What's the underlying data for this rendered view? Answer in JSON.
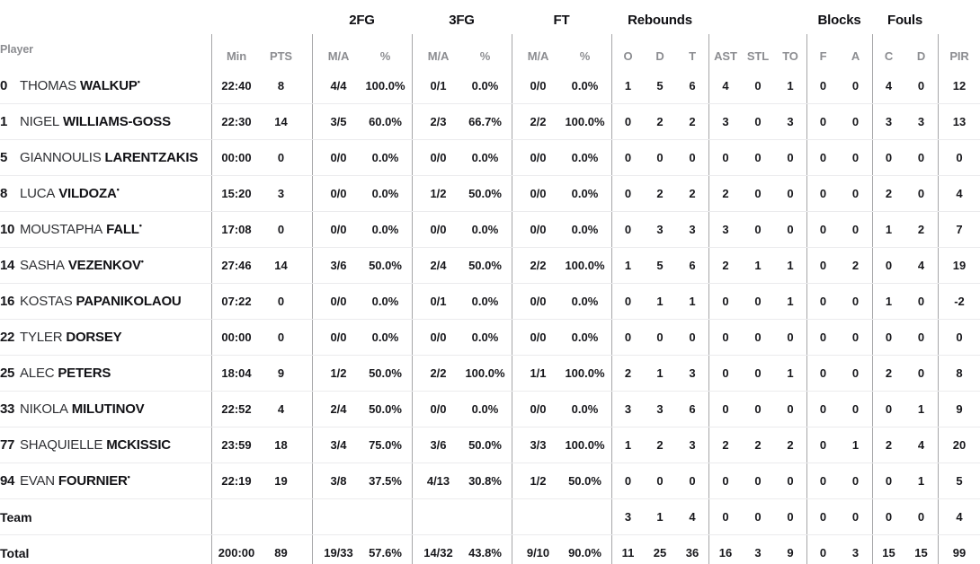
{
  "groups": {
    "fg2": "2FG",
    "fg3": "3FG",
    "ft": "FT",
    "rebounds": "Rebounds",
    "blocks": "Blocks",
    "fouls": "Fouls"
  },
  "columns": {
    "player": "Player",
    "min": "Min",
    "pts": "PTS",
    "ma": "M/A",
    "pct": "%",
    "o": "O",
    "d": "D",
    "t": "T",
    "ast": "AST",
    "stl": "STL",
    "to": "TO",
    "f": "F",
    "a": "A",
    "c": "C",
    "d2": "D",
    "pir": "PIR"
  },
  "starter_marker": "•",
  "colors": {
    "text": "#17171b",
    "header_gray": "#8c8d91",
    "divider": "#a6a6a8",
    "row_separator": "#ebebed"
  },
  "players": [
    {
      "number": "0",
      "first": "THOMAS",
      "last": "WALKUP",
      "starter": true,
      "min": "22:40",
      "pts": "8",
      "fg2ma": "4/4",
      "fg2pct": "100.0%",
      "fg3ma": "0/1",
      "fg3pct": "0.0%",
      "ftma": "0/0",
      "ftpct": "0.0%",
      "o": "1",
      "d": "5",
      "t": "6",
      "ast": "4",
      "stl": "0",
      "to": "1",
      "bf": "0",
      "ba": "0",
      "fc": "4",
      "fd": "0",
      "pir": "12"
    },
    {
      "number": "1",
      "first": "NIGEL",
      "last": "WILLIAMS-GOSS",
      "starter": false,
      "min": "22:30",
      "pts": "14",
      "fg2ma": "3/5",
      "fg2pct": "60.0%",
      "fg3ma": "2/3",
      "fg3pct": "66.7%",
      "ftma": "2/2",
      "ftpct": "100.0%",
      "o": "0",
      "d": "2",
      "t": "2",
      "ast": "3",
      "stl": "0",
      "to": "3",
      "bf": "0",
      "ba": "0",
      "fc": "3",
      "fd": "3",
      "pir": "13"
    },
    {
      "number": "5",
      "first": "GIANNOULIS",
      "last": "LARENTZAKIS",
      "starter": false,
      "min": "00:00",
      "pts": "0",
      "fg2ma": "0/0",
      "fg2pct": "0.0%",
      "fg3ma": "0/0",
      "fg3pct": "0.0%",
      "ftma": "0/0",
      "ftpct": "0.0%",
      "o": "0",
      "d": "0",
      "t": "0",
      "ast": "0",
      "stl": "0",
      "to": "0",
      "bf": "0",
      "ba": "0",
      "fc": "0",
      "fd": "0",
      "pir": "0"
    },
    {
      "number": "8",
      "first": "LUCA",
      "last": "VILDOZA",
      "starter": true,
      "min": "15:20",
      "pts": "3",
      "fg2ma": "0/0",
      "fg2pct": "0.0%",
      "fg3ma": "1/2",
      "fg3pct": "50.0%",
      "ftma": "0/0",
      "ftpct": "0.0%",
      "o": "0",
      "d": "2",
      "t": "2",
      "ast": "2",
      "stl": "0",
      "to": "0",
      "bf": "0",
      "ba": "0",
      "fc": "2",
      "fd": "0",
      "pir": "4"
    },
    {
      "number": "10",
      "first": "MOUSTAPHA",
      "last": "FALL",
      "starter": true,
      "min": "17:08",
      "pts": "0",
      "fg2ma": "0/0",
      "fg2pct": "0.0%",
      "fg3ma": "0/0",
      "fg3pct": "0.0%",
      "ftma": "0/0",
      "ftpct": "0.0%",
      "o": "0",
      "d": "3",
      "t": "3",
      "ast": "3",
      "stl": "0",
      "to": "0",
      "bf": "0",
      "ba": "0",
      "fc": "1",
      "fd": "2",
      "pir": "7"
    },
    {
      "number": "14",
      "first": "SASHA",
      "last": "VEZENKOV",
      "starter": true,
      "min": "27:46",
      "pts": "14",
      "fg2ma": "3/6",
      "fg2pct": "50.0%",
      "fg3ma": "2/4",
      "fg3pct": "50.0%",
      "ftma": "2/2",
      "ftpct": "100.0%",
      "o": "1",
      "d": "5",
      "t": "6",
      "ast": "2",
      "stl": "1",
      "to": "1",
      "bf": "0",
      "ba": "2",
      "fc": "0",
      "fd": "4",
      "pir": "19"
    },
    {
      "number": "16",
      "first": "KOSTAS",
      "last": "PAPANIKOLAOU",
      "starter": false,
      "min": "07:22",
      "pts": "0",
      "fg2ma": "0/0",
      "fg2pct": "0.0%",
      "fg3ma": "0/1",
      "fg3pct": "0.0%",
      "ftma": "0/0",
      "ftpct": "0.0%",
      "o": "0",
      "d": "1",
      "t": "1",
      "ast": "0",
      "stl": "0",
      "to": "1",
      "bf": "0",
      "ba": "0",
      "fc": "1",
      "fd": "0",
      "pir": "-2"
    },
    {
      "number": "22",
      "first": "TYLER",
      "last": "DORSEY",
      "starter": false,
      "min": "00:00",
      "pts": "0",
      "fg2ma": "0/0",
      "fg2pct": "0.0%",
      "fg3ma": "0/0",
      "fg3pct": "0.0%",
      "ftma": "0/0",
      "ftpct": "0.0%",
      "o": "0",
      "d": "0",
      "t": "0",
      "ast": "0",
      "stl": "0",
      "to": "0",
      "bf": "0",
      "ba": "0",
      "fc": "0",
      "fd": "0",
      "pir": "0"
    },
    {
      "number": "25",
      "first": "ALEC",
      "last": "PETERS",
      "starter": false,
      "min": "18:04",
      "pts": "9",
      "fg2ma": "1/2",
      "fg2pct": "50.0%",
      "fg3ma": "2/2",
      "fg3pct": "100.0%",
      "ftma": "1/1",
      "ftpct": "100.0%",
      "o": "2",
      "d": "1",
      "t": "3",
      "ast": "0",
      "stl": "0",
      "to": "1",
      "bf": "0",
      "ba": "0",
      "fc": "2",
      "fd": "0",
      "pir": "8"
    },
    {
      "number": "33",
      "first": "NIKOLA",
      "last": "MILUTINOV",
      "starter": false,
      "min": "22:52",
      "pts": "4",
      "fg2ma": "2/4",
      "fg2pct": "50.0%",
      "fg3ma": "0/0",
      "fg3pct": "0.0%",
      "ftma": "0/0",
      "ftpct": "0.0%",
      "o": "3",
      "d": "3",
      "t": "6",
      "ast": "0",
      "stl": "0",
      "to": "0",
      "bf": "0",
      "ba": "0",
      "fc": "0",
      "fd": "1",
      "pir": "9"
    },
    {
      "number": "77",
      "first": "SHAQUIELLE",
      "last": "MCKISSIC",
      "starter": false,
      "min": "23:59",
      "pts": "18",
      "fg2ma": "3/4",
      "fg2pct": "75.0%",
      "fg3ma": "3/6",
      "fg3pct": "50.0%",
      "ftma": "3/3",
      "ftpct": "100.0%",
      "o": "1",
      "d": "2",
      "t": "3",
      "ast": "2",
      "stl": "2",
      "to": "2",
      "bf": "0",
      "ba": "1",
      "fc": "2",
      "fd": "4",
      "pir": "20"
    },
    {
      "number": "94",
      "first": "EVAN",
      "last": "FOURNIER",
      "starter": true,
      "min": "22:19",
      "pts": "19",
      "fg2ma": "3/8",
      "fg2pct": "37.5%",
      "fg3ma": "4/13",
      "fg3pct": "30.8%",
      "ftma": "1/2",
      "ftpct": "50.0%",
      "o": "0",
      "d": "0",
      "t": "0",
      "ast": "0",
      "stl": "0",
      "to": "0",
      "bf": "0",
      "ba": "0",
      "fc": "0",
      "fd": "1",
      "pir": "5"
    }
  ],
  "team": {
    "label": "Team",
    "o": "3",
    "d": "1",
    "t": "4",
    "ast": "0",
    "stl": "0",
    "to": "0",
    "bf": "0",
    "ba": "0",
    "fc": "0",
    "fd": "0",
    "pir": "4"
  },
  "total": {
    "label": "Total",
    "min": "200:00",
    "pts": "89",
    "fg2ma": "19/33",
    "fg2pct": "57.6%",
    "fg3ma": "14/32",
    "fg3pct": "43.8%",
    "ftma": "9/10",
    "ftpct": "90.0%",
    "o": "11",
    "d": "25",
    "t": "36",
    "ast": "16",
    "stl": "3",
    "to": "9",
    "bf": "0",
    "ba": "3",
    "fc": "15",
    "fd": "15",
    "pir": "99"
  }
}
